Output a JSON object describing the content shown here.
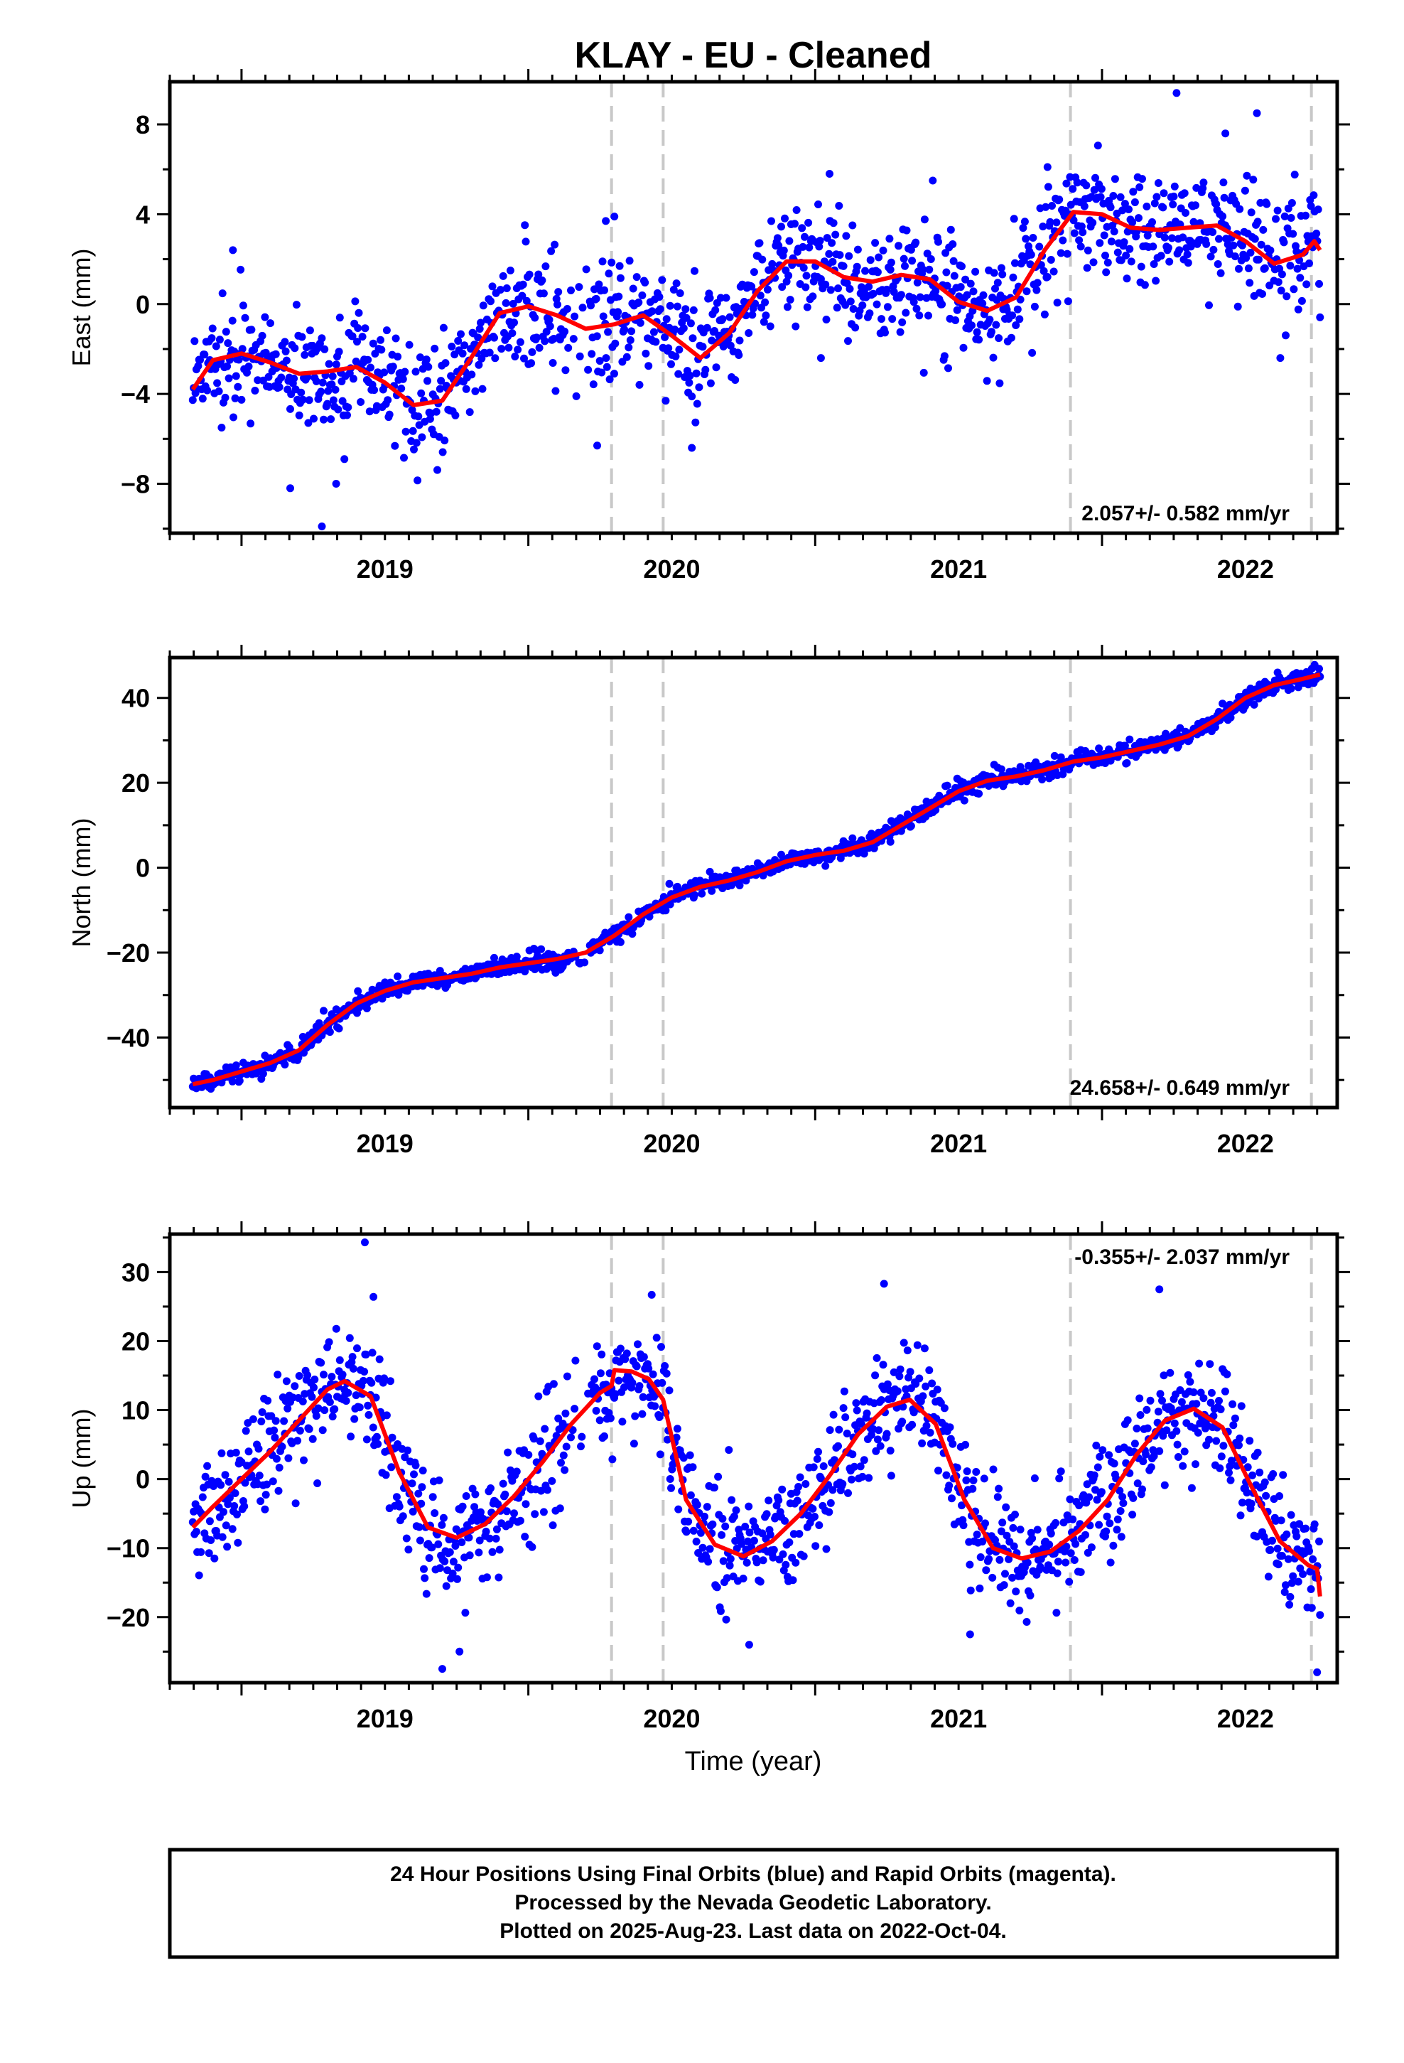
{
  "chart_data": [
    {
      "type": "scatter",
      "title": "KLAY  - EU - Cleaned",
      "ylabel": "East (mm)",
      "xlabel": "",
      "xlim": [
        2018.75,
        2022.82
      ],
      "ylim": [
        -10.2,
        9.9
      ],
      "x_ticks": [
        "2019",
        "2020",
        "2021",
        "2022"
      ],
      "y_ticks": [
        8,
        4,
        0,
        -4,
        -8
      ],
      "grid": false,
      "rate_label": "2.057+/- 0.582 mm/yr",
      "rate_position": "bottom-right",
      "event_lines_x": [
        2020.29,
        2020.47,
        2021.89,
        2022.73
      ],
      "series": [
        {
          "color": "#0000ff",
          "kind": "points",
          "start": 2018.83,
          "end": 2022.76,
          "count": 1250,
          "scatter_sd": 1.3,
          "outliers": [
            [
              2018.97,
              2.4
            ],
            [
              2019.17,
              -8.2
            ],
            [
              2019.28,
              -9.9
            ],
            [
              2019.33,
              -8.0
            ],
            [
              2020.27,
              3.7
            ],
            [
              2020.3,
              3.9
            ],
            [
              2021.05,
              5.8
            ],
            [
              2021.41,
              5.5
            ],
            [
              2021.81,
              6.1
            ],
            [
              2022.26,
              9.4
            ],
            [
              2022.43,
              7.6
            ],
            [
              2022.54,
              8.5
            ],
            [
              2020.24,
              -6.3
            ],
            [
              2020.57,
              -6.4
            ],
            [
              2021.02,
              -2.4
            ]
          ]
        },
        {
          "color": "#ff0000",
          "kind": "line",
          "x": [
            2018.83,
            2018.9,
            2019.0,
            2019.1,
            2019.2,
            2019.3,
            2019.4,
            2019.5,
            2019.6,
            2019.7,
            2019.8,
            2019.9,
            2020.0,
            2020.1,
            2020.2,
            2020.3,
            2020.4,
            2020.5,
            2020.6,
            2020.7,
            2020.8,
            2020.9,
            2021.0,
            2021.1,
            2021.2,
            2021.3,
            2021.4,
            2021.5,
            2021.6,
            2021.7,
            2021.8,
            2021.9,
            2022.0,
            2022.1,
            2022.2,
            2022.3,
            2022.4,
            2022.5,
            2022.6,
            2022.7,
            2022.74,
            2022.76
          ],
          "y": [
            -3.8,
            -2.5,
            -2.2,
            -2.6,
            -3.1,
            -3.0,
            -2.8,
            -3.5,
            -4.5,
            -4.3,
            -2.4,
            -0.4,
            -0.1,
            -0.5,
            -1.1,
            -0.9,
            -0.5,
            -1.4,
            -2.4,
            -1.3,
            0.6,
            1.9,
            1.9,
            1.2,
            1.0,
            1.3,
            1.1,
            0.1,
            -0.3,
            0.3,
            2.4,
            4.1,
            4.0,
            3.4,
            3.3,
            3.4,
            3.5,
            2.8,
            1.8,
            2.2,
            2.8,
            2.4
          ]
        }
      ]
    },
    {
      "type": "scatter",
      "title": "",
      "ylabel": "North (mm)",
      "xlabel": "",
      "xlim": [
        2018.75,
        2022.82
      ],
      "ylim": [
        -56.5,
        49.5
      ],
      "x_ticks": [
        "2019",
        "2020",
        "2021",
        "2022"
      ],
      "y_ticks": [
        40,
        20,
        0,
        -20,
        -40
      ],
      "grid": false,
      "rate_label": "24.658+/- 0.649 mm/yr",
      "rate_position": "bottom-right",
      "event_lines_x": [
        2020.29,
        2020.47,
        2021.89,
        2022.73
      ],
      "series": [
        {
          "color": "#0000ff",
          "kind": "points",
          "start": 2018.83,
          "end": 2022.76,
          "count": 1250,
          "scatter_sd": 1.1,
          "outliers": []
        },
        {
          "color": "#ff0000",
          "kind": "line",
          "x": [
            2018.83,
            2018.9,
            2019.0,
            2019.1,
            2019.2,
            2019.3,
            2019.4,
            2019.5,
            2019.6,
            2019.7,
            2019.8,
            2019.9,
            2020.0,
            2020.1,
            2020.2,
            2020.3,
            2020.4,
            2020.5,
            2020.6,
            2020.7,
            2020.8,
            2020.9,
            2021.0,
            2021.1,
            2021.2,
            2021.3,
            2021.4,
            2021.5,
            2021.6,
            2021.7,
            2021.8,
            2021.9,
            2022.0,
            2022.1,
            2022.2,
            2022.3,
            2022.4,
            2022.5,
            2022.6,
            2022.7,
            2022.76
          ],
          "y": [
            -51,
            -50,
            -48,
            -46,
            -43,
            -37,
            -32,
            -29,
            -27,
            -26,
            -25,
            -23.5,
            -22.5,
            -21.5,
            -20,
            -16,
            -11,
            -7,
            -4.5,
            -3,
            -1,
            1.5,
            3,
            4,
            6,
            10,
            14,
            18,
            20.5,
            21.5,
            23,
            25,
            26,
            27.5,
            29,
            31,
            35,
            40,
            43,
            44.5,
            45.5
          ]
        }
      ]
    },
    {
      "type": "scatter",
      "title": "",
      "ylabel": "Up (mm)",
      "xlabel": "Time (year)",
      "xlim": [
        2018.75,
        2022.82
      ],
      "ylim": [
        -29.5,
        35.5
      ],
      "x_ticks": [
        "2019",
        "2020",
        "2021",
        "2022"
      ],
      "y_ticks": [
        30,
        20,
        10,
        0,
        -10,
        -20
      ],
      "grid": false,
      "rate_label": "-0.355+/- 2.037 mm/yr",
      "rate_position": "top-right",
      "event_lines_x": [
        2020.29,
        2020.47,
        2021.89,
        2022.73
      ],
      "series": [
        {
          "color": "#0000ff",
          "kind": "points",
          "start": 2018.83,
          "end": 2022.76,
          "count": 1250,
          "scatter_sd": 4.2,
          "outliers": [
            [
              2019.43,
              34.3
            ],
            [
              2019.7,
              -27.5
            ],
            [
              2019.76,
              -25.0
            ],
            [
              2021.24,
              28.3
            ],
            [
              2022.2,
              27.5
            ],
            [
              2022.75,
              -28.0
            ],
            [
              2020.77,
              -24.0
            ],
            [
              2021.54,
              -22.5
            ],
            [
              2020.43,
              26.7
            ],
            [
              2019.46,
              26.4
            ]
          ]
        },
        {
          "color": "#ff0000",
          "kind": "line",
          "x": [
            2018.83,
            2018.9,
            2019.0,
            2019.1,
            2019.2,
            2019.3,
            2019.36,
            2019.45,
            2019.55,
            2019.65,
            2019.75,
            2019.85,
            2019.95,
            2020.05,
            2020.15,
            2020.25,
            2020.29,
            2020.3,
            2020.36,
            2020.42,
            2020.47,
            2020.55,
            2020.65,
            2020.75,
            2020.85,
            2020.95,
            2021.05,
            2021.15,
            2021.25,
            2021.33,
            2021.42,
            2021.52,
            2021.62,
            2021.72,
            2021.82,
            2021.92,
            2022.02,
            2022.12,
            2022.22,
            2022.32,
            2022.42,
            2022.52,
            2022.62,
            2022.72,
            2022.75,
            2022.76
          ],
          "y": [
            -7,
            -4,
            0,
            4,
            8.5,
            13,
            14.2,
            12,
            1,
            -7,
            -8.5,
            -6.5,
            -2.5,
            2.5,
            8,
            12.5,
            13.5,
            15.8,
            15.6,
            14.5,
            11.5,
            -3,
            -9.5,
            -11.2,
            -9,
            -5,
            0.5,
            6.5,
            10.5,
            11.5,
            8,
            -3,
            -10,
            -11.5,
            -10.5,
            -7.5,
            -3,
            3.5,
            8.5,
            10.2,
            7.5,
            -1,
            -9,
            -12.5,
            -13,
            -17
          ]
        }
      ]
    }
  ],
  "footer": {
    "line1": "24 Hour Positions Using Final Orbits (blue) and Rapid Orbits (magenta).",
    "line2": "Processed by the Nevada Geodetic Laboratory.",
    "line3": "Plotted on 2025-Aug-23. Last data on 2022-Oct-04."
  }
}
